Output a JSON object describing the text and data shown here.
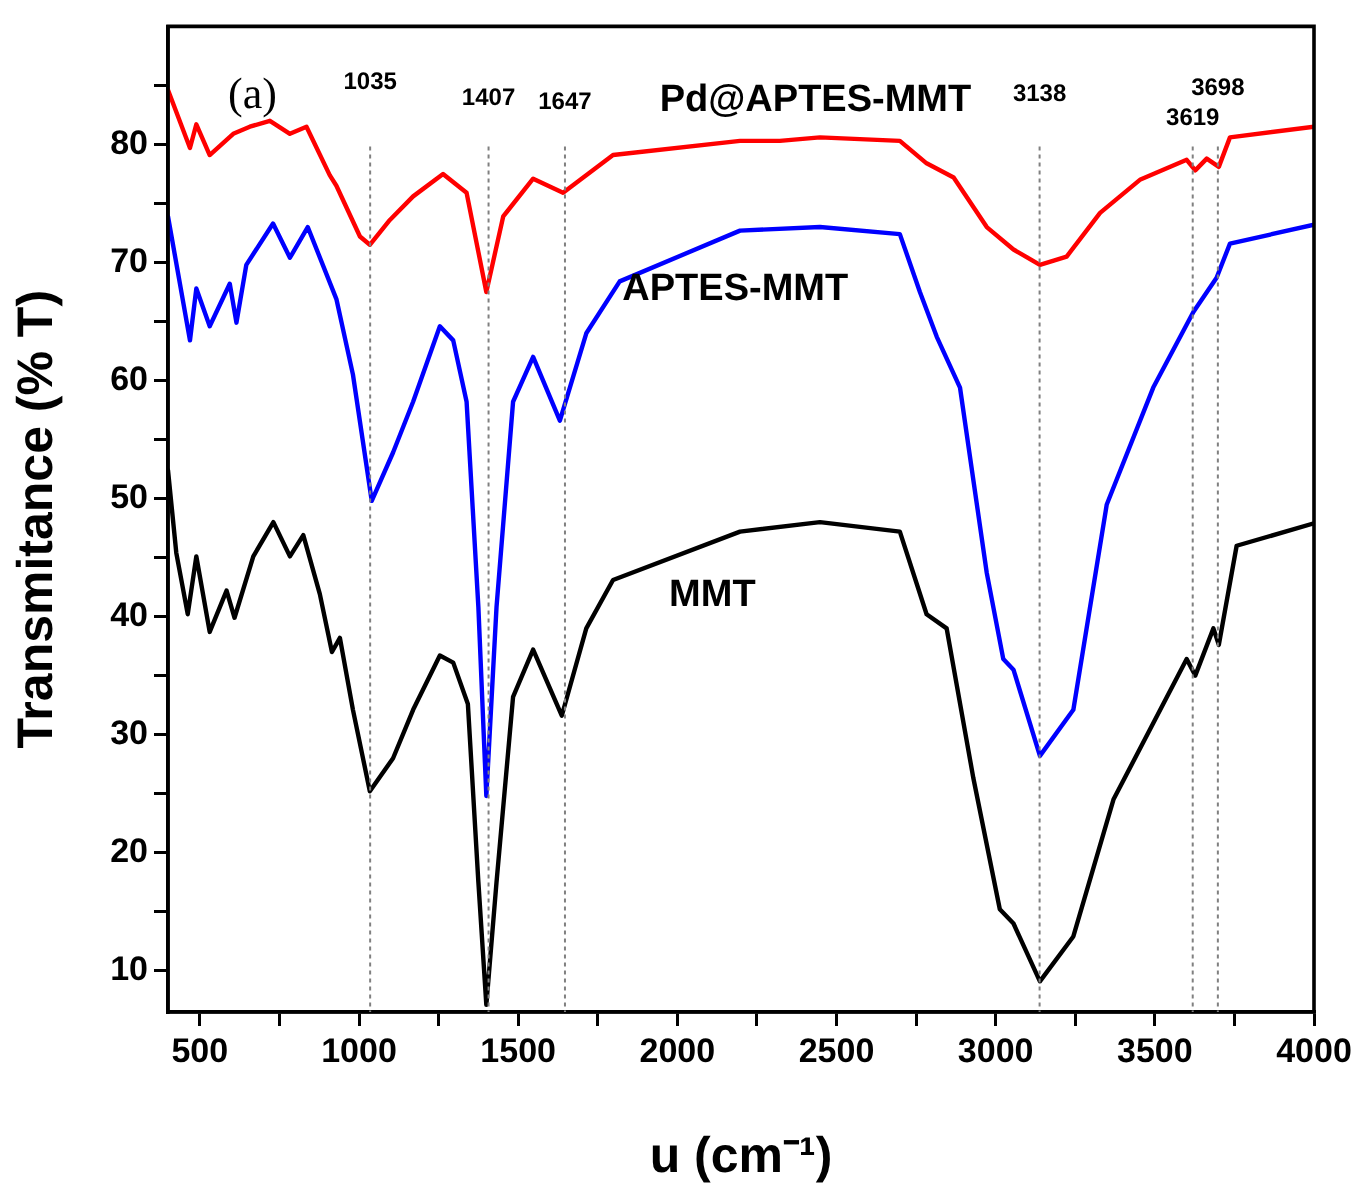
{
  "chart_data": {
    "type": "line",
    "xlabel": "u (cm⁻¹)",
    "ylabel": "Transmitance (% T)",
    "xlim": [
      400,
      4000
    ],
    "ylim": [
      6.5,
      90
    ],
    "xticks": [
      500,
      {
        "value": 750,
        "label": null
      },
      1000,
      {
        "value": 1250,
        "label": null
      },
      1500,
      {
        "value": 1750,
        "label": null
      },
      2000,
      {
        "value": 2250,
        "label": null
      },
      2500,
      {
        "value": 2750,
        "label": null
      },
      3000,
      {
        "value": 3250,
        "label": null
      },
      3500,
      {
        "value": 3750,
        "label": null
      },
      4000
    ],
    "yticks": [
      10,
      {
        "value": 15,
        "label": null
      },
      20,
      {
        "value": 25,
        "label": null
      },
      30,
      {
        "value": 35,
        "label": null
      },
      40,
      {
        "value": 45,
        "label": null
      },
      50,
      {
        "value": 55,
        "label": null
      },
      60,
      {
        "value": 65,
        "label": null
      },
      70,
      {
        "value": 75,
        "label": null
      },
      80,
      {
        "value": 85,
        "label": null
      }
    ],
    "grid": false,
    "legend": false,
    "marker": "none",
    "line_style": "solid",
    "annotations": [
      "(a)"
    ],
    "ref_lines": [
      {
        "axis": "x",
        "value": 1035,
        "label": "1035",
        "line_style": "dotted",
        "color": "#808080"
      },
      {
        "axis": "x",
        "value": 1407,
        "label": "1407",
        "line_style": "dotted",
        "color": "#808080"
      },
      {
        "axis": "x",
        "value": 1647,
        "label": "1647",
        "line_style": "dotted",
        "color": "#808080"
      },
      {
        "axis": "x",
        "value": 3138,
        "label": "3138",
        "line_style": "dotted",
        "color": "#808080"
      },
      {
        "axis": "x",
        "value": 3619,
        "label": "3619",
        "line_style": "dotted",
        "color": "#808080"
      },
      {
        "axis": "x",
        "value": 3698,
        "label": "3698",
        "line_style": "dotted",
        "color": "#808080"
      }
    ],
    "series": [
      {
        "name": "Pd@APTES-MMT",
        "color": "#ff0000",
        "x": [
          400,
          469,
          489,
          531,
          605,
          657,
          720,
          783,
          835,
          908,
          929,
          1003,
          1034,
          1097,
          1170,
          1264,
          1338,
          1400,
          1453,
          1547,
          1641,
          1798,
          2197,
          2322,
          2448,
          2699,
          2783,
          2868,
          2972,
          3056,
          3139,
          3223,
          3328,
          3453,
          3600,
          3627,
          3663,
          3701,
          3736,
          4000
        ],
        "values": [
          84.6,
          79.7,
          81.7,
          79.1,
          80.9,
          81.5,
          82.0,
          80.9,
          81.5,
          77.4,
          76.5,
          72.2,
          71.5,
          73.6,
          75.6,
          77.5,
          75.9,
          67.5,
          73.9,
          77.1,
          75.9,
          79.1,
          80.3,
          80.3,
          80.6,
          80.3,
          78.4,
          77.2,
          73,
          71.1,
          69.8,
          70.5,
          74.2,
          77,
          78.7,
          77.8,
          78.8,
          78.1,
          80.6,
          81.5
        ]
      },
      {
        "name": "APTES-MMT",
        "color": "#0000ff",
        "x": [
          400,
          469,
          489,
          531,
          594,
          615,
          646,
          730,
          783,
          839,
          929,
          981,
          1040,
          1107,
          1170,
          1254,
          1296,
          1338,
          1375,
          1400,
          1432,
          1484,
          1547,
          1631,
          1714,
          1819,
          2197,
          2448,
          2699,
          2762,
          2815,
          2888,
          2972,
          3024,
          3056,
          3139,
          3244,
          3349,
          3495,
          3621,
          3694,
          3736,
          4000
        ],
        "values": [
          73.9,
          63.4,
          67.8,
          64.6,
          68.2,
          64.9,
          69.8,
          73.3,
          70.4,
          73,
          66.9,
          60.5,
          49.8,
          53.9,
          58.2,
          64.6,
          63.4,
          58.2,
          40.8,
          24.8,
          40.8,
          58.2,
          62,
          56.6,
          64,
          68.4,
          72.7,
          73,
          72.4,
          67.5,
          63.7,
          59.4,
          43.7,
          36.4,
          35.5,
          28.2,
          32.1,
          49.5,
          59.4,
          65.8,
          68.7,
          71.6,
          73.2
        ]
      },
      {
        "name": "MMT",
        "color": "#000000",
        "x": [
          400,
          426,
          462,
          489,
          531,
          584,
          609,
          668,
          731,
          783,
          825,
          877,
          915,
          940,
          981,
          1034,
          1107,
          1170,
          1254,
          1296,
          1342,
          1375,
          1400,
          1432,
          1484,
          1547,
          1637,
          1714,
          1798,
          2197,
          2448,
          2699,
          2783,
          2846,
          2930,
          3013,
          3056,
          3139,
          3244,
          3370,
          3600,
          3627,
          3684,
          3701,
          3757,
          4000
        ],
        "values": [
          52.4,
          45.4,
          40.2,
          45.1,
          38.7,
          42.2,
          39.9,
          45.1,
          48,
          45.1,
          46.9,
          41.9,
          37,
          38.2,
          32.1,
          25.2,
          28,
          32.1,
          36.7,
          36.1,
          32.6,
          17.5,
          7.1,
          17.5,
          33.2,
          37.2,
          31.6,
          39,
          43.1,
          47.2,
          48,
          47.2,
          40.2,
          39,
          26.3,
          15.2,
          14,
          9.1,
          12.9,
          24.5,
          36.4,
          35,
          39,
          37.6,
          46,
          47.9
        ]
      }
    ]
  }
}
